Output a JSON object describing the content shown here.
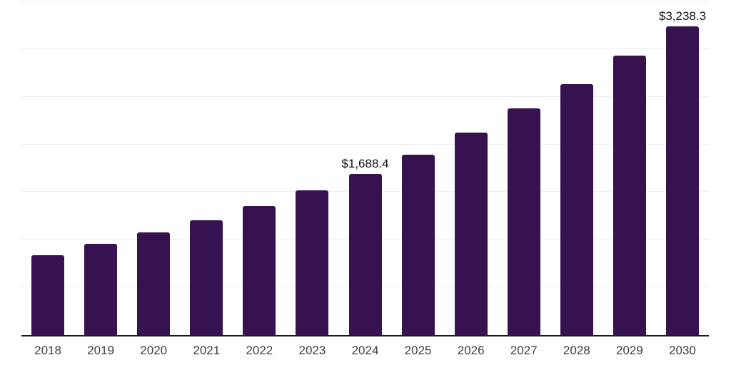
{
  "chart_data": {
    "type": "bar",
    "title": "",
    "xlabel": "",
    "ylabel": "",
    "categories": [
      "2018",
      "2019",
      "2020",
      "2021",
      "2022",
      "2023",
      "2024",
      "2025",
      "2026",
      "2027",
      "2028",
      "2029",
      "2030"
    ],
    "values": [
      840,
      960,
      1080,
      1205,
      1355,
      1520,
      1688.4,
      1895,
      2125,
      2375,
      2635,
      2930,
      3238.3
    ],
    "point_labels": [
      "",
      "",
      "",
      "",
      "",
      "",
      "$1,688.4",
      "",
      "",
      "",
      "",
      "",
      "$3,238.3"
    ],
    "ylim": [
      0,
      3500
    ],
    "grid": true,
    "gridline_step": 500,
    "y_axis_labels_visible": false,
    "legend": false
  },
  "colors": {
    "bar": "#371250",
    "grid": "#ededed",
    "axis": "#1a1a1a",
    "value_label": "#111111",
    "tick_label": "#3d3d3d",
    "background": "#ffffff"
  }
}
